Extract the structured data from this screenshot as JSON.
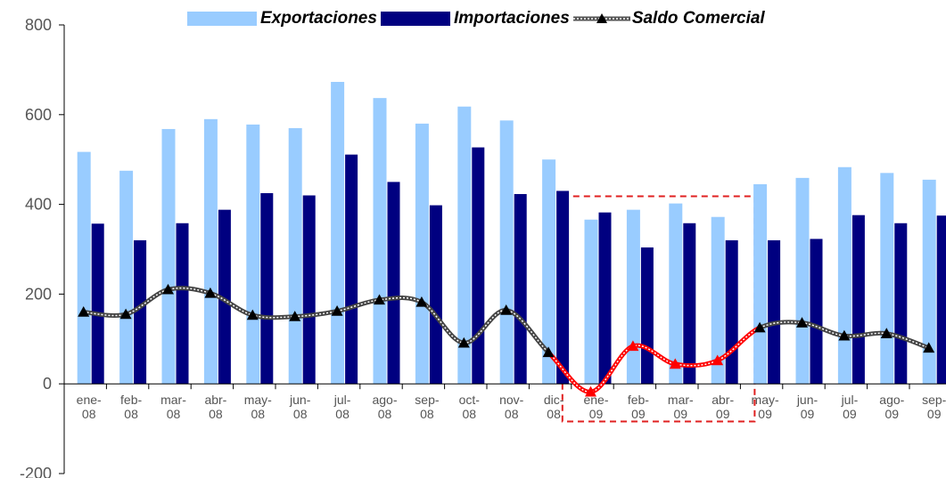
{
  "chart_data": {
    "type": "bar",
    "categories": [
      [
        "ene-",
        "08"
      ],
      [
        "feb-",
        "08"
      ],
      [
        "mar-",
        "08"
      ],
      [
        "abr-",
        "08"
      ],
      [
        "may-",
        "08"
      ],
      [
        "jun-",
        "08"
      ],
      [
        "jul-",
        "08"
      ],
      [
        "ago-",
        "08"
      ],
      [
        "sep-",
        "08"
      ],
      [
        "oct-",
        "08"
      ],
      [
        "nov-",
        "08"
      ],
      [
        "dic-",
        "08"
      ],
      [
        "ene-",
        "09"
      ],
      [
        "feb-",
        "09"
      ],
      [
        "mar-",
        "09"
      ],
      [
        "abr-",
        "09"
      ],
      [
        "may-",
        "09"
      ],
      [
        "jun-",
        "09"
      ],
      [
        "jul-",
        "09"
      ],
      [
        "ago-",
        "09"
      ],
      [
        "sep-",
        "09"
      ]
    ],
    "series": [
      {
        "name": "Exportaciones",
        "type": "bar",
        "color": "#99ccff",
        "values": [
          517,
          475,
          568,
          590,
          578,
          570,
          673,
          637,
          580,
          618,
          587,
          500,
          366,
          388,
          402,
          372,
          445,
          459,
          483,
          470,
          455
        ]
      },
      {
        "name": "Importaciones",
        "type": "bar",
        "color": "#000080",
        "values": [
          357,
          320,
          358,
          388,
          425,
          420,
          511,
          450,
          398,
          527,
          423,
          430,
          382,
          304,
          358,
          320,
          320,
          323,
          376,
          358,
          375
        ]
      },
      {
        "name": "Saldo Comercial",
        "type": "line",
        "color": "#000000",
        "highlight_color": "#ff0000",
        "values": [
          160,
          155,
          210,
          202,
          153,
          150,
          162,
          187,
          182,
          91,
          164,
          70,
          -18,
          84,
          44,
          52,
          125,
          136,
          107,
          112,
          80
        ]
      }
    ],
    "highlight_range": [
      12,
      15
    ],
    "highlight_line_segments": [
      11,
      16
    ],
    "ylim": [
      -200,
      800
    ],
    "yticks": [
      -200,
      0,
      200,
      400,
      600,
      800
    ],
    "legend_position": "top",
    "grid": false
  }
}
